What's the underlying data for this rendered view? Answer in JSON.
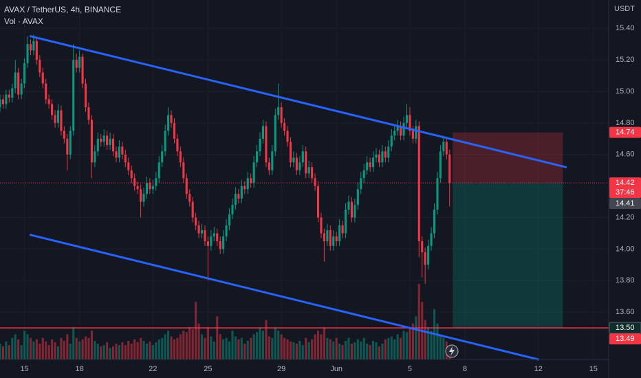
{
  "chart_data": {
    "type": "candlestick",
    "title": "AVAX / TetherUS, 4h, BINANCE",
    "subtitle": "Vol · AVAX",
    "y_axis_label": "USDT",
    "up_color": "#089981",
    "down_color": "#f23645",
    "xlim": [
      0,
      199
    ],
    "ylim": [
      13.3,
      15.58
    ],
    "volume_ylim": [
      0,
      500
    ],
    "grid": true,
    "xticks": [
      {
        "value": 8,
        "label": "15"
      },
      {
        "value": 26,
        "label": "18"
      },
      {
        "value": 50,
        "label": "22"
      },
      {
        "value": 68,
        "label": "25"
      },
      {
        "value": 92,
        "label": "29"
      },
      {
        "value": 110,
        "label": "Jun"
      },
      {
        "value": 134,
        "label": "5"
      },
      {
        "value": 152,
        "label": "8"
      },
      {
        "value": 176,
        "label": "12"
      },
      {
        "value": 194,
        "label": "15"
      }
    ],
    "yticks": [
      {
        "value": 15.4,
        "label": "15.40"
      },
      {
        "value": 15.2,
        "label": "15.20"
      },
      {
        "value": 15.0,
        "label": "15.00"
      },
      {
        "value": 14.8,
        "label": "14.80"
      },
      {
        "value": 14.6,
        "label": "14.60"
      },
      {
        "value": 14.2,
        "label": "14.20"
      },
      {
        "value": 14.0,
        "label": "14.00"
      },
      {
        "value": 13.8,
        "label": "13.80"
      },
      {
        "value": 13.6,
        "label": "13.60"
      }
    ],
    "open": [
      14.9,
      14.95,
      14.92,
      14.98,
      14.96,
      15.02,
      15.12,
      14.98,
      15.05,
      15.18,
      15.3,
      15.26,
      15.32,
      15.2,
      15.12,
      15.05,
      14.95,
      14.92,
      14.85,
      14.8,
      14.88,
      14.75,
      14.7,
      14.6,
      14.75,
      15.2,
      15.15,
      15.22,
      15.05,
      14.9,
      14.82,
      14.55,
      14.62,
      14.7,
      14.68,
      14.72,
      14.66,
      14.7,
      14.62,
      14.58,
      14.65,
      14.6,
      14.55,
      14.5,
      14.45,
      14.4,
      14.38,
      14.3,
      14.35,
      14.42,
      14.38,
      14.4,
      14.45,
      14.55,
      14.62,
      14.75,
      14.85,
      14.8,
      14.7,
      14.62,
      14.55,
      14.45,
      14.35,
      14.3,
      14.2,
      14.15,
      14.1,
      14.12,
      14.05,
      14.02,
      14.08,
      14.1,
      14.05,
      14.0,
      14.08,
      14.15,
      14.22,
      14.28,
      14.35,
      14.32,
      14.4,
      14.38,
      14.45,
      14.42,
      14.55,
      14.62,
      14.7,
      14.78,
      14.55,
      14.5,
      14.62,
      14.85,
      14.9,
      14.8,
      14.75,
      14.68,
      14.55,
      14.58,
      14.5,
      14.55,
      14.62,
      14.48,
      14.52,
      14.45,
      14.4,
      14.2,
      14.1,
      14.05,
      14.12,
      14.02,
      14.08,
      14.05,
      14.15,
      14.1,
      14.25,
      14.3,
      14.2,
      14.28,
      14.38,
      14.45,
      14.5,
      14.55,
      14.52,
      14.58,
      14.6,
      14.55,
      14.62,
      14.58,
      14.65,
      14.72,
      14.75,
      14.78,
      14.72,
      14.8,
      14.85,
      14.75,
      14.7,
      14.78,
      14.05,
      13.98,
      13.9,
      14.02,
      14.1,
      14.25,
      14.45,
      14.62,
      14.68,
      14.6
    ],
    "high": [
      14.98,
      14.98,
      15.01,
      15.01,
      15.05,
      15.2,
      15.15,
      15.08,
      15.21,
      15.35,
      15.33,
      15.36,
      15.34,
      15.23,
      15.15,
      15.08,
      14.98,
      14.95,
      14.88,
      14.92,
      14.91,
      14.78,
      14.73,
      14.78,
      15.3,
      15.24,
      15.26,
      15.24,
      15.08,
      14.93,
      14.85,
      14.66,
      14.74,
      14.73,
      14.76,
      14.75,
      14.74,
      14.73,
      14.65,
      14.69,
      14.68,
      14.63,
      14.58,
      14.53,
      14.48,
      14.43,
      14.41,
      14.39,
      14.46,
      14.45,
      14.44,
      14.49,
      14.59,
      14.66,
      14.79,
      14.9,
      14.88,
      14.83,
      14.73,
      14.65,
      14.58,
      14.48,
      14.38,
      14.33,
      14.23,
      14.18,
      14.16,
      14.15,
      14.08,
      14.12,
      14.14,
      14.13,
      14.08,
      14.12,
      14.19,
      14.26,
      14.32,
      14.39,
      14.38,
      14.44,
      14.43,
      14.49,
      14.48,
      14.59,
      14.66,
      14.74,
      14.82,
      14.81,
      14.58,
      14.66,
      14.89,
      15.05,
      14.93,
      14.83,
      14.78,
      14.71,
      14.62,
      14.61,
      14.59,
      14.66,
      14.65,
      14.56,
      14.55,
      14.48,
      14.43,
      14.23,
      14.13,
      14.16,
      14.15,
      14.12,
      14.11,
      14.19,
      14.18,
      14.29,
      14.34,
      14.33,
      14.32,
      14.42,
      14.49,
      14.54,
      14.59,
      14.58,
      14.62,
      14.64,
      14.63,
      14.66,
      14.65,
      14.69,
      14.76,
      14.79,
      14.82,
      14.81,
      14.84,
      14.92,
      14.9,
      14.78,
      14.82,
      14.81,
      14.08,
      14.01,
      14.06,
      14.14,
      14.29,
      14.49,
      14.66,
      14.72,
      14.7,
      14.63
    ],
    "low": [
      14.87,
      14.89,
      14.89,
      14.93,
      14.93,
      14.99,
      14.95,
      14.95,
      15.02,
      15.15,
      15.23,
      15.23,
      15.17,
      15.09,
      15.02,
      14.92,
      14.89,
      14.82,
      14.77,
      14.77,
      14.72,
      14.67,
      14.5,
      14.57,
      14.72,
      15.12,
      15.12,
      15.02,
      14.87,
      14.79,
      14.45,
      14.52,
      14.59,
      14.65,
      14.65,
      14.63,
      14.63,
      14.59,
      14.55,
      14.55,
      14.57,
      14.52,
      14.47,
      14.42,
      14.37,
      14.35,
      14.2,
      14.27,
      14.32,
      14.35,
      14.35,
      14.37,
      14.42,
      14.52,
      14.59,
      14.72,
      14.77,
      14.67,
      14.59,
      14.52,
      14.42,
      14.32,
      14.27,
      14.17,
      14.12,
      14.07,
      14.07,
      14.02,
      13.8,
      13.99,
      14.05,
      14.02,
      13.97,
      13.97,
      14.05,
      14.12,
      14.19,
      14.25,
      14.29,
      14.29,
      14.35,
      14.35,
      14.39,
      14.39,
      14.52,
      14.59,
      14.67,
      14.52,
      14.47,
      14.47,
      14.59,
      14.82,
      14.77,
      14.72,
      14.65,
      14.52,
      14.52,
      14.47,
      14.47,
      14.52,
      14.45,
      14.45,
      14.42,
      14.37,
      14.17,
      14.07,
      13.92,
      14.02,
      13.99,
      13.99,
      14.02,
      14.02,
      14.07,
      14.07,
      14.22,
      14.17,
      14.17,
      14.25,
      14.35,
      14.42,
      14.47,
      14.49,
      14.49,
      14.55,
      14.52,
      14.52,
      14.55,
      14.55,
      14.62,
      14.69,
      14.72,
      14.69,
      14.69,
      14.77,
      14.72,
      14.67,
      14.67,
      13.95,
      13.82,
      13.78,
      13.87,
      13.99,
      14.07,
      14.22,
      14.42,
      14.59,
      14.57,
      14.27
    ],
    "close": [
      14.95,
      14.92,
      14.98,
      14.96,
      15.02,
      15.12,
      14.98,
      15.05,
      15.18,
      15.3,
      15.26,
      15.32,
      15.2,
      15.12,
      15.05,
      14.95,
      14.92,
      14.85,
      14.8,
      14.88,
      14.75,
      14.7,
      14.6,
      14.75,
      15.2,
      15.15,
      15.22,
      15.05,
      14.9,
      14.82,
      14.55,
      14.62,
      14.7,
      14.68,
      14.72,
      14.66,
      14.7,
      14.62,
      14.58,
      14.65,
      14.6,
      14.55,
      14.5,
      14.45,
      14.4,
      14.38,
      14.3,
      14.35,
      14.42,
      14.38,
      14.4,
      14.45,
      14.55,
      14.62,
      14.75,
      14.85,
      14.8,
      14.7,
      14.62,
      14.55,
      14.45,
      14.35,
      14.3,
      14.2,
      14.15,
      14.1,
      14.12,
      14.05,
      14.02,
      14.08,
      14.1,
      14.05,
      14.0,
      14.08,
      14.15,
      14.22,
      14.28,
      14.35,
      14.32,
      14.4,
      14.38,
      14.45,
      14.42,
      14.55,
      14.62,
      14.7,
      14.78,
      14.55,
      14.5,
      14.62,
      14.85,
      14.9,
      14.8,
      14.75,
      14.68,
      14.55,
      14.58,
      14.5,
      14.55,
      14.62,
      14.48,
      14.52,
      14.45,
      14.4,
      14.2,
      14.1,
      14.05,
      14.12,
      14.02,
      14.08,
      14.05,
      14.15,
      14.1,
      14.25,
      14.3,
      14.2,
      14.28,
      14.38,
      14.45,
      14.5,
      14.55,
      14.52,
      14.58,
      14.6,
      14.55,
      14.62,
      14.58,
      14.65,
      14.72,
      14.75,
      14.78,
      14.72,
      14.8,
      14.85,
      14.75,
      14.7,
      14.78,
      14.05,
      13.98,
      13.9,
      14.02,
      14.1,
      14.25,
      14.45,
      14.62,
      14.68,
      14.6,
      14.42
    ],
    "volume": [
      22,
      18,
      25,
      20,
      30,
      35,
      28,
      20,
      40,
      35,
      30,
      25,
      28,
      22,
      30,
      25,
      20,
      28,
      24,
      18,
      30,
      26,
      35,
      22,
      45,
      30,
      25,
      28,
      32,
      30,
      40,
      26,
      22,
      18,
      20,
      24,
      16,
      18,
      22,
      20,
      24,
      20,
      26,
      22,
      28,
      24,
      30,
      26,
      22,
      25,
      20,
      24,
      28,
      30,
      35,
      40,
      32,
      28,
      30,
      35,
      40,
      38,
      45,
      42,
      80,
      50,
      35,
      30,
      45,
      32,
      25,
      60,
      35,
      28,
      30,
      25,
      40,
      32,
      28,
      30,
      22,
      26,
      30,
      35,
      38,
      45,
      40,
      55,
      32,
      30,
      45,
      40,
      35,
      30,
      28,
      25,
      24,
      22,
      26,
      20,
      30,
      24,
      28,
      35,
      40,
      35,
      45,
      30,
      28,
      25,
      30,
      22,
      20,
      26,
      30,
      22,
      24,
      28,
      25,
      30,
      22,
      20,
      26,
      24,
      18,
      22,
      28,
      30,
      32,
      28,
      35,
      30,
      40,
      38,
      45,
      50,
      60,
      105,
      80,
      55,
      45,
      40,
      70,
      50,
      35,
      30,
      25,
      20
    ],
    "trendlines": [
      {
        "color": "#2962ff",
        "x": [
          10,
          185
        ],
        "y": [
          15.35,
          14.52
        ]
      },
      {
        "color": "#2962ff",
        "x": [
          10,
          176
        ],
        "y": [
          14.09,
          13.3
        ]
      }
    ],
    "hline": {
      "value": 13.5,
      "color": "#f23645"
    },
    "position": {
      "x": [
        148,
        184
      ],
      "stop": 14.74,
      "entry": 14.42,
      "target": 13.5,
      "stop_color": "#f23645",
      "target_color": "#089981"
    },
    "last_price": {
      "value": 14.42,
      "color": "#f23645"
    },
    "price_tags": [
      {
        "value": 14.74,
        "label": "14.74",
        "color": "#f23645"
      },
      {
        "value": 14.42,
        "label": "14.42",
        "sub": "37:46",
        "color": "#f23645"
      },
      {
        "value": 14.41,
        "label": "14.41",
        "color": "#434651"
      },
      {
        "value": 13.5,
        "label": "13.50",
        "color": "#0f2d2a"
      },
      {
        "value": 13.49,
        "label": "13.49",
        "color": "#f23645"
      }
    ]
  }
}
